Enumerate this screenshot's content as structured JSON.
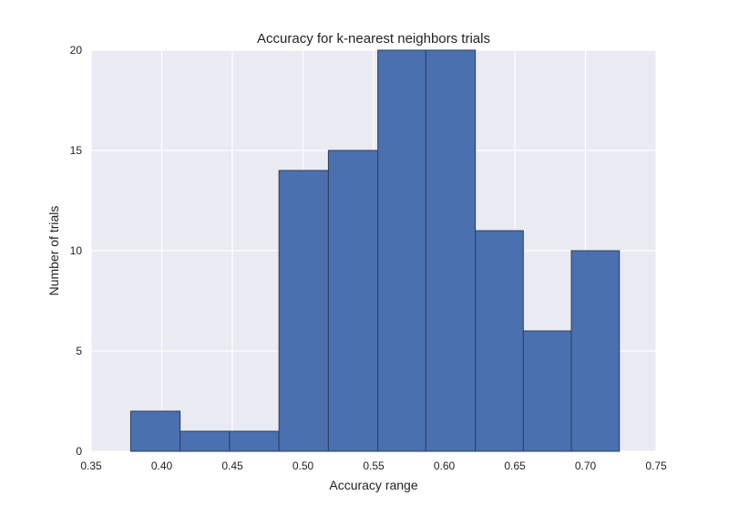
{
  "chart_data": {
    "type": "bar",
    "title": "Accuracy for k-nearest neighbors trials",
    "xlabel": "Accuracy range",
    "ylabel": "Number of trials",
    "xlim": [
      0.35,
      0.75
    ],
    "ylim": [
      0,
      20
    ],
    "xticks": [
      0.35,
      0.4,
      0.45,
      0.5,
      0.55,
      0.6,
      0.65,
      0.7,
      0.75
    ],
    "xtick_labels": [
      "0.35",
      "0.40",
      "0.45",
      "0.50",
      "0.55",
      "0.60",
      "0.65",
      "0.70",
      "0.75"
    ],
    "yticks": [
      0,
      5,
      10,
      15,
      20
    ],
    "ytick_labels": [
      "0",
      "5",
      "10",
      "15",
      "20"
    ],
    "bin_edges": [
      0.378,
      0.413,
      0.448,
      0.483,
      0.518,
      0.553,
      0.587,
      0.622,
      0.656,
      0.69,
      0.724
    ],
    "values": [
      2,
      1,
      1,
      14,
      15,
      20,
      20,
      11,
      6,
      10
    ],
    "grid": true,
    "colors": {
      "bar_fill": "#4a70b0",
      "bar_edge": "#2c3e5c",
      "plot_background": "#eaeaf2",
      "grid": "#ffffff"
    }
  }
}
